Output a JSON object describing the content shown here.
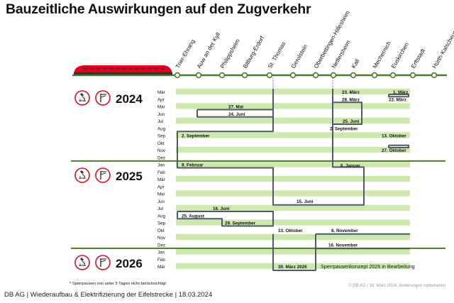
{
  "title": "Bauzeitliche Auswirkungen auf den Zugverkehr",
  "stations": [
    "Trier-Ehrang",
    "Auw an der Kyll",
    "Philippsheim",
    "Bitburg-Erdorf",
    "St. Thomas",
    "Gerolstein",
    "Oberbettingen-Hillesheim",
    "Nettersheim",
    "Kall",
    "Mechernich",
    "Euskirchen",
    "Erftstadt",
    "Hürth-Kalscheuren"
  ],
  "years": [
    {
      "label": "2024",
      "months": [
        "Mär",
        "Apr",
        "Mai",
        "Jun",
        "Jul",
        "Aug",
        "Sep",
        "Okt",
        "Nov",
        "Dez"
      ]
    },
    {
      "label": "2025",
      "months": [
        "Jan",
        "Feb",
        "Mär",
        "Apr",
        "Mai",
        "Jun",
        "Jul",
        "Aug",
        "Sep",
        "Okt",
        "Nov",
        "Dez"
      ]
    },
    {
      "label": "2026",
      "months": [
        "Jan",
        "Feb",
        "Mär"
      ]
    }
  ],
  "date_labels": [
    "1. März",
    "22. März",
    "23. März",
    "28. März",
    "27. Mai",
    "24. Juni",
    "25. Juni",
    "2. September",
    "2. September",
    "13. Oktober",
    "27. Oktober",
    "9. Februar",
    "6. Januar",
    "15. Juni",
    "16. Juni",
    "25. August",
    "29. September",
    "13. Oktober",
    "8. November",
    "16. November",
    "30. März 2026"
  ],
  "note_2026": "Sperrpausenkonzept 2026 in Bearbeitung",
  "footnote": "* Sperrpausen von unter 5 Tagen nicht berücksichtigt",
  "copyright": "© DB AG / 18. März 2024, Änderungen vorbehalten",
  "footer": "DB AG | Wiederaufbau & Elektrifizierung der Eifelstrecke | 18.03.2024",
  "icons": [
    "construction-icon",
    "catenary-icon"
  ],
  "colors": {
    "track": "#4d7a2b",
    "bar": "#cfe8b0",
    "outline": "#505a64",
    "train": "#e2001a",
    "icon_red": "#d0112b"
  }
}
